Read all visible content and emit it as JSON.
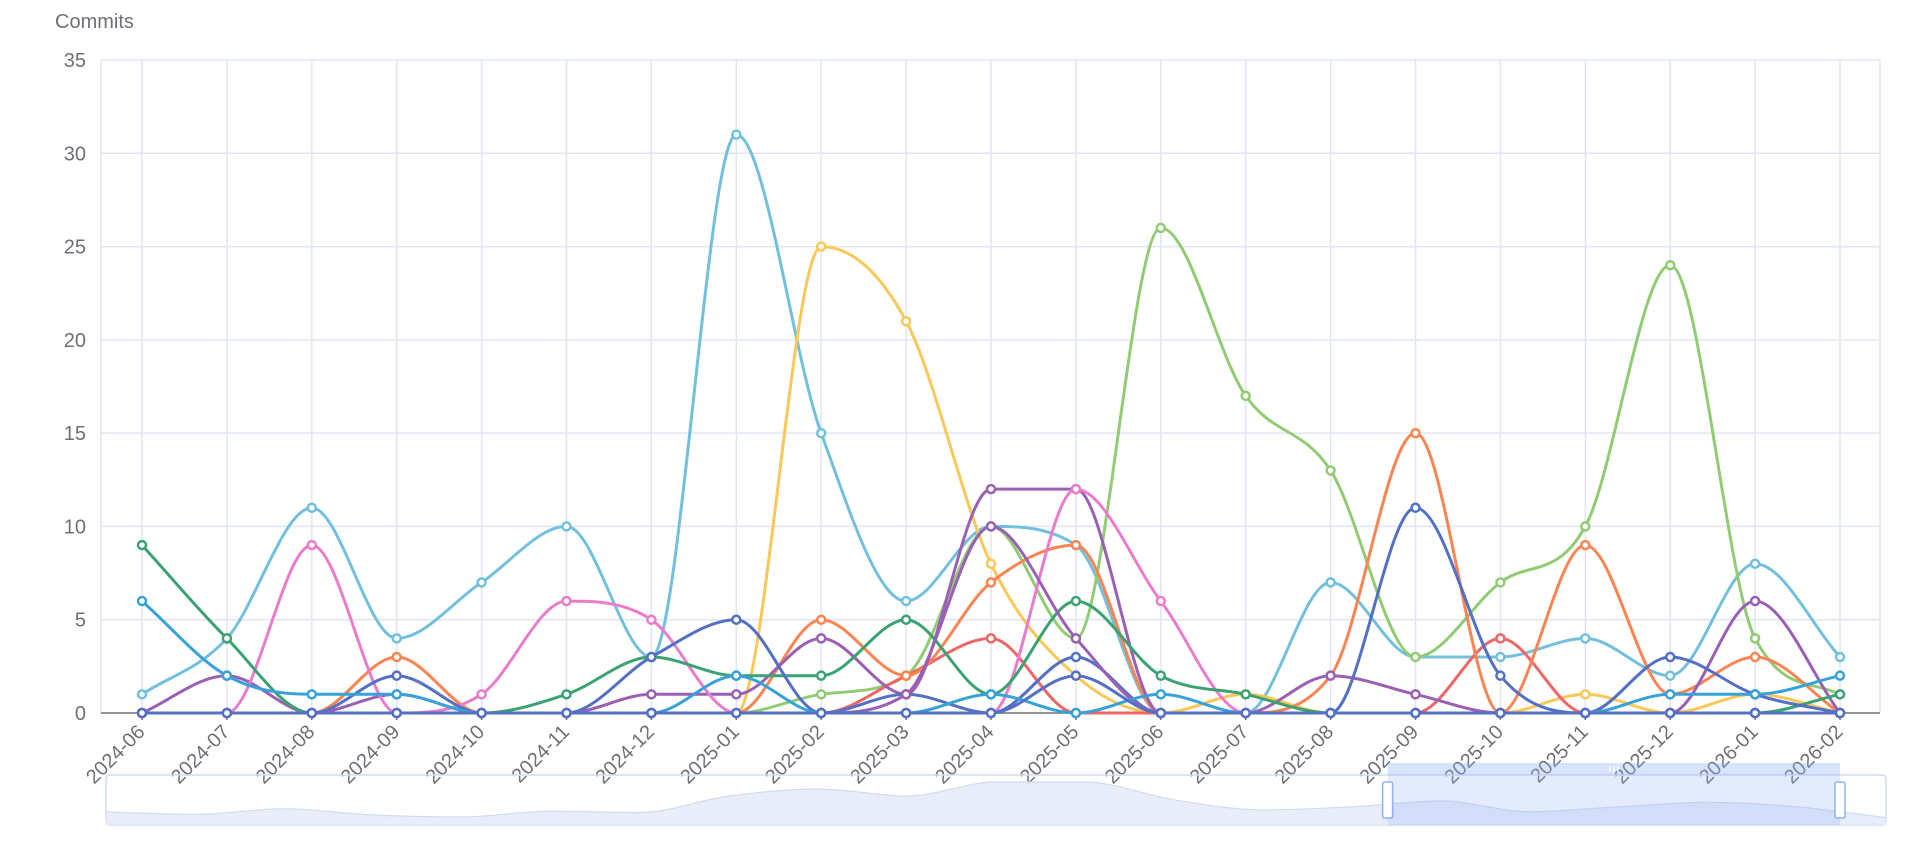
{
  "chart_data": {
    "type": "line",
    "ylabel": "Commits",
    "ylim": [
      0,
      35
    ],
    "y_ticks": [
      0,
      5,
      10,
      15,
      20,
      25,
      30,
      35
    ],
    "x": [
      "2024-06",
      "2024-07",
      "2024-08",
      "2024-09",
      "2024-10",
      "2024-11",
      "2024-12",
      "2025-01",
      "2025-02",
      "2025-03",
      "2025-04",
      "2025-05",
      "2025-06",
      "2025-07",
      "2025-08",
      "2025-09",
      "2025-10",
      "2025-11",
      "2025-12",
      "2026-01",
      "2026-02"
    ],
    "grid": true,
    "smooth": true,
    "legend": "none",
    "series": [
      {
        "color": "#73c0de",
        "values": [
          1,
          4,
          11,
          4,
          7,
          10,
          3,
          31,
          15,
          6,
          10,
          9,
          0,
          0,
          7,
          3,
          3,
          4,
          2,
          8,
          3
        ]
      },
      {
        "color": "#fac858",
        "values": [
          0,
          0,
          0,
          0,
          0,
          0,
          0,
          0,
          25,
          21,
          8,
          2,
          0,
          1,
          0,
          0,
          0,
          1,
          0,
          1,
          0
        ]
      },
      {
        "color": "#91cc75",
        "values": [
          0,
          0,
          0,
          0,
          0,
          0,
          0,
          0,
          1,
          2,
          10,
          4,
          26,
          17,
          13,
          3,
          7,
          10,
          24,
          4,
          1
        ]
      },
      {
        "color": "#ee6666",
        "values": [
          0,
          0,
          0,
          0,
          0,
          0,
          0,
          0,
          0,
          2,
          4,
          0,
          0,
          0,
          0,
          0,
          4,
          0,
          0,
          0,
          0
        ]
      },
      {
        "color": "#fc8452",
        "values": [
          0,
          0,
          0,
          3,
          0,
          0,
          0,
          0,
          5,
          2,
          7,
          9,
          0,
          0,
          2,
          15,
          0,
          9,
          1,
          3,
          0
        ]
      },
      {
        "color": "#9a60b4",
        "values": [
          0,
          2,
          0,
          1,
          0,
          0,
          1,
          1,
          4,
          1,
          12,
          12,
          0,
          0,
          2,
          1,
          0,
          0,
          0,
          6,
          0
        ]
      },
      {
        "color": "#ea7ccc",
        "values": [
          0,
          0,
          9,
          0,
          1,
          6,
          5,
          0,
          0,
          0,
          0,
          12,
          6,
          0,
          0,
          0,
          0,
          0,
          0,
          0,
          0
        ]
      },
      {
        "color": "#3ba272",
        "values": [
          9,
          4,
          0,
          0,
          0,
          1,
          3,
          2,
          2,
          5,
          1,
          6,
          2,
          1,
          0,
          0,
          0,
          0,
          0,
          0,
          1
        ]
      },
      {
        "color": "#5470c6",
        "values": [
          0,
          0,
          0,
          2,
          0,
          0,
          3,
          5,
          0,
          1,
          0,
          3,
          0,
          0,
          0,
          11,
          2,
          0,
          3,
          1,
          0
        ]
      },
      {
        "color": "#9a60b4",
        "values": [
          0,
          0,
          0,
          0,
          0,
          0,
          0,
          0,
          0,
          1,
          10,
          4,
          0,
          0,
          0,
          0,
          0,
          0,
          0,
          0,
          0
        ]
      },
      {
        "color": "#37a2da",
        "values": [
          6,
          2,
          1,
          1,
          0,
          0,
          0,
          2,
          0,
          0,
          1,
          0,
          1,
          0,
          0,
          0,
          0,
          0,
          1,
          1,
          2
        ]
      },
      {
        "color": "#5470c6",
        "values": [
          0,
          0,
          0,
          0,
          0,
          0,
          0,
          0,
          0,
          0,
          0,
          2,
          0,
          0,
          0,
          0,
          0,
          0,
          0,
          0,
          0
        ]
      }
    ],
    "datazoom": {
      "start_fraction": 0.72,
      "end_fraction": 1.0,
      "color": "#8fb0f7"
    }
  }
}
